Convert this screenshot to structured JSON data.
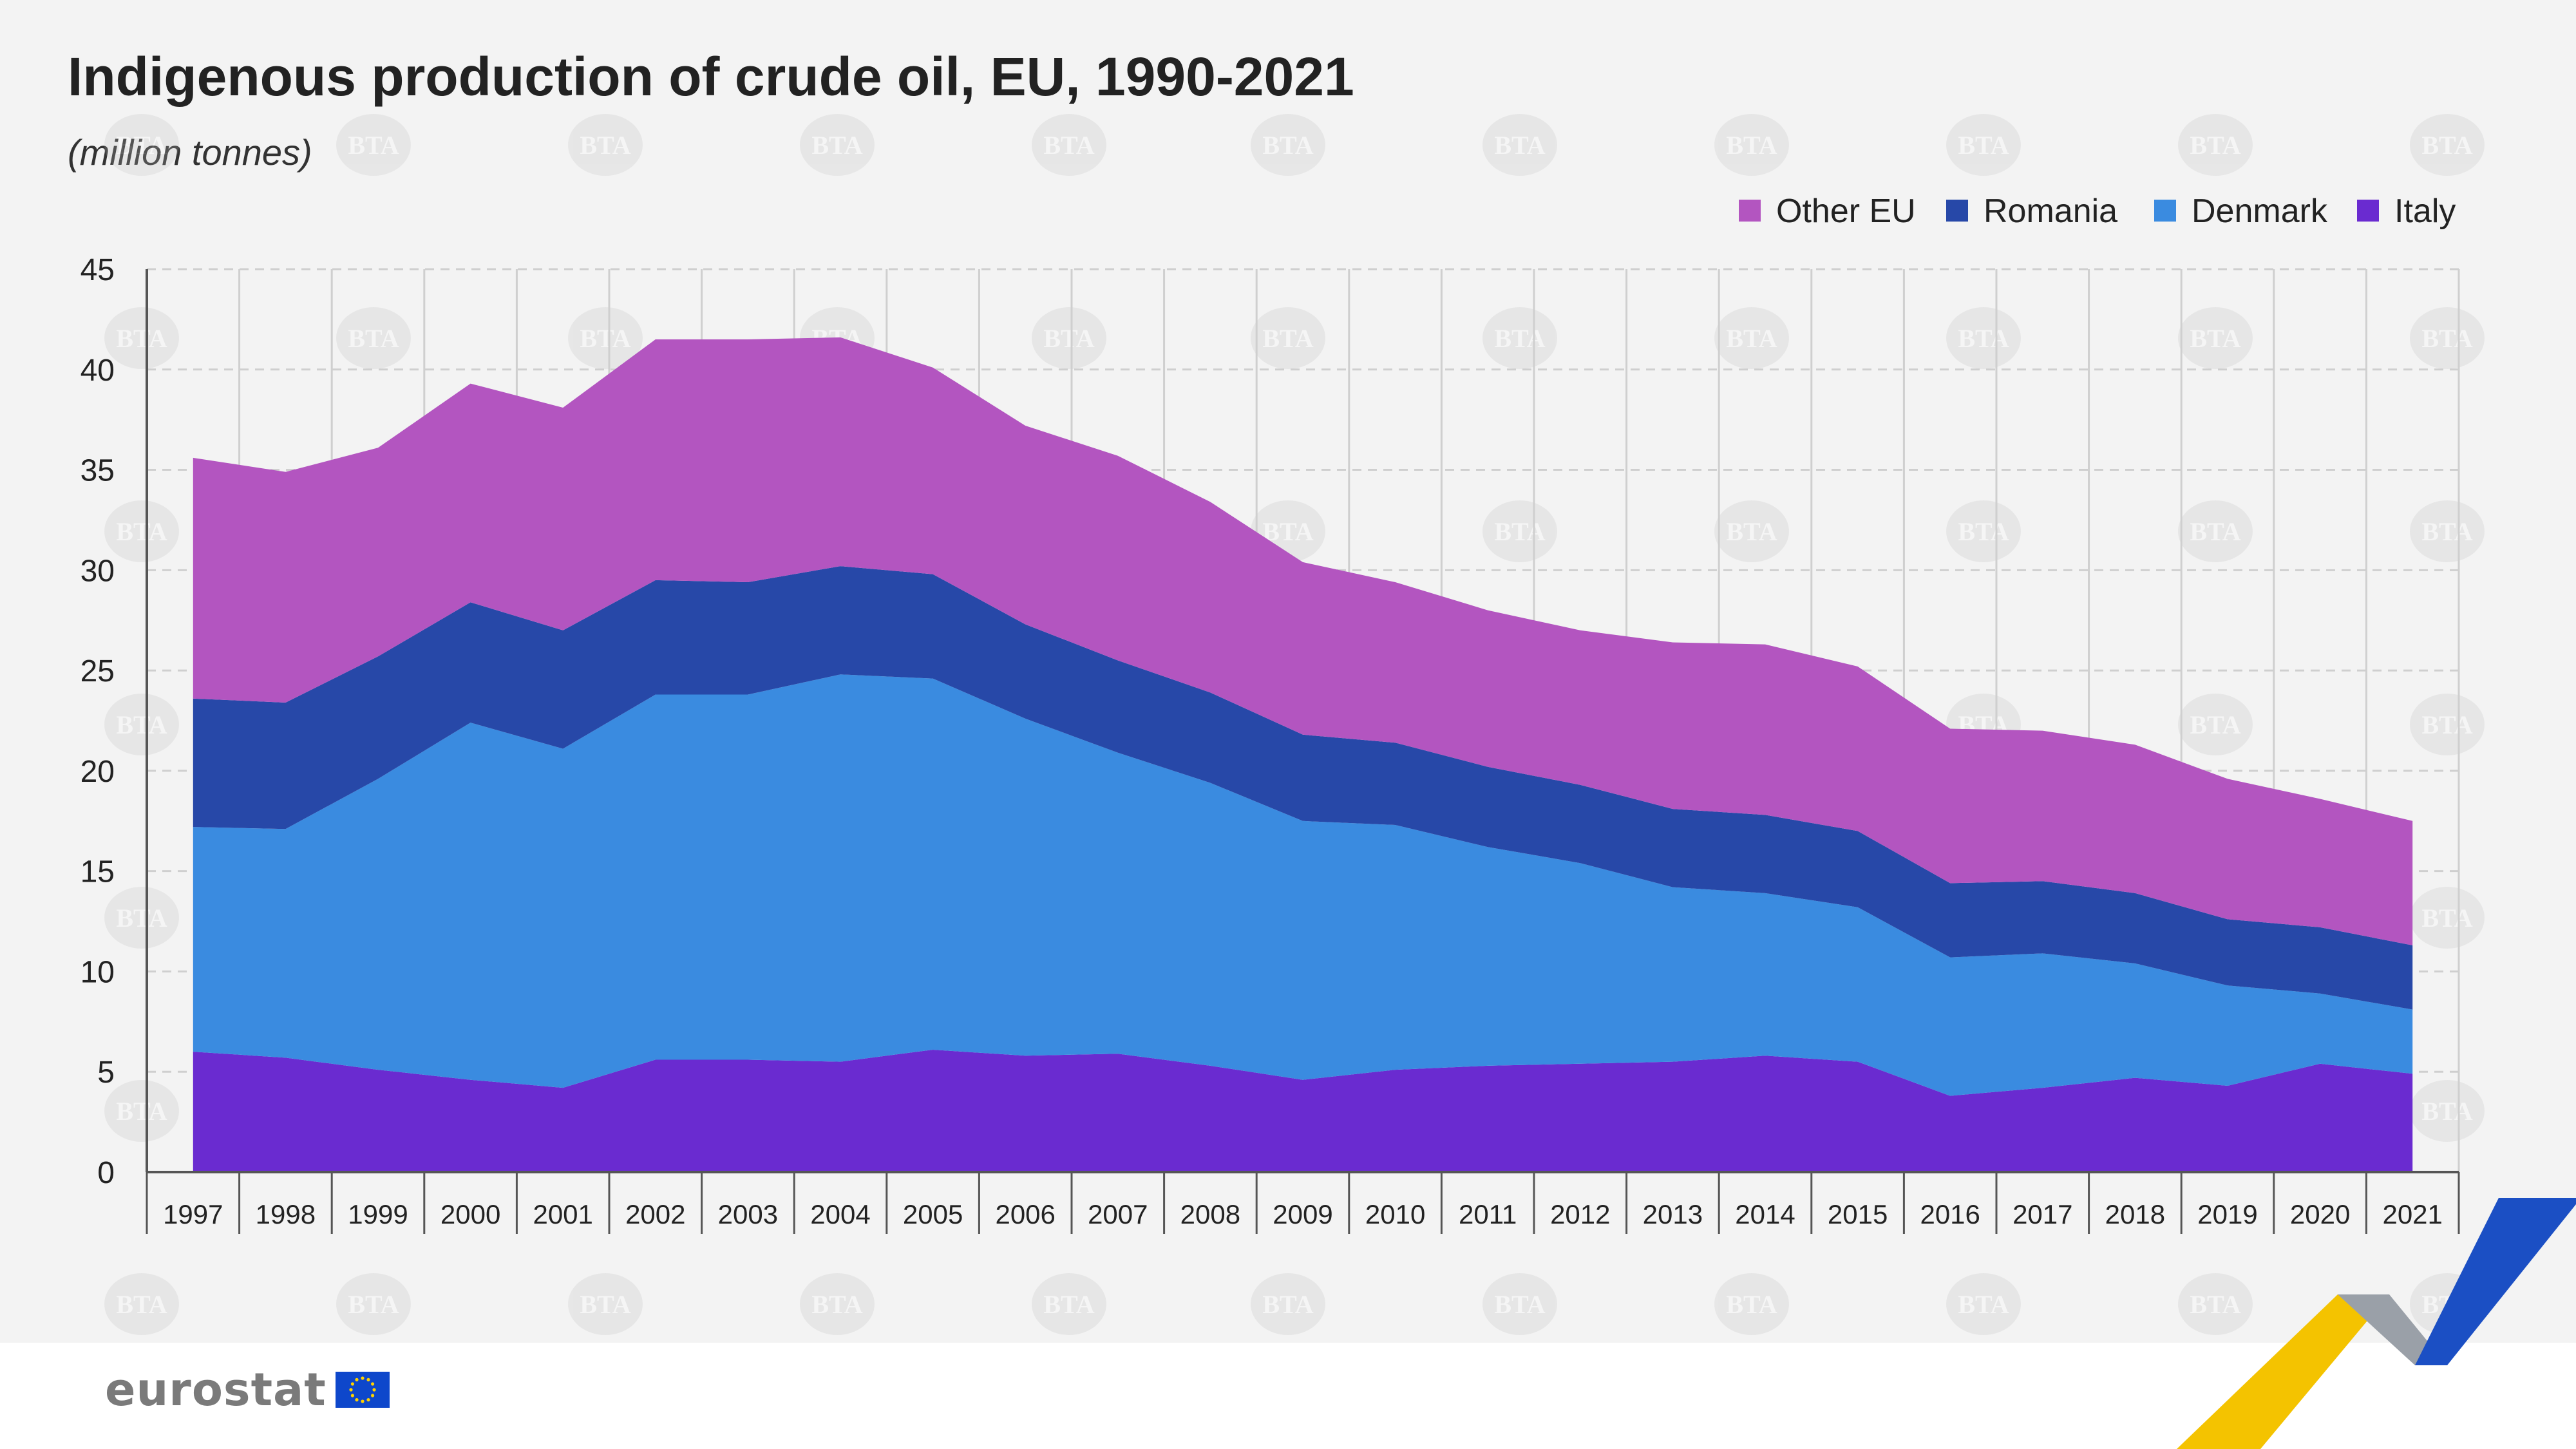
{
  "chart_data": {
    "type": "area",
    "stacked": true,
    "title": "Indigenous production of crude oil, EU, 1990-2021",
    "subtitle": "(million tonnes)",
    "xlabel": "",
    "ylabel": "",
    "ylim": [
      0,
      45
    ],
    "yticks": [
      0,
      5,
      10,
      15,
      20,
      25,
      30,
      35,
      40,
      45
    ],
    "grid": true,
    "legend_position": "top-right",
    "x": [
      "1997",
      "1998",
      "1999",
      "2000",
      "2001",
      "2002",
      "2003",
      "2004",
      "2005",
      "2006",
      "2007",
      "2008",
      "2009",
      "2010",
      "2011",
      "2012",
      "2013",
      "2014",
      "2015",
      "2016",
      "2017",
      "2018",
      "2019",
      "2020",
      "2021"
    ],
    "series": [
      {
        "name": "Italy",
        "color": "#6a2bd0",
        "values": [
          6.0,
          5.7,
          5.1,
          4.6,
          4.2,
          5.6,
          5.6,
          5.5,
          6.1,
          5.8,
          5.9,
          5.3,
          4.6,
          5.1,
          5.3,
          5.4,
          5.5,
          5.8,
          5.5,
          3.8,
          4.2,
          4.7,
          4.3,
          5.4,
          4.9
        ]
      },
      {
        "name": "Denmark",
        "color": "#3a8be0",
        "values": [
          11.2,
          11.4,
          14.5,
          17.8,
          16.9,
          18.2,
          18.2,
          19.3,
          18.5,
          16.8,
          15.0,
          14.1,
          12.9,
          12.2,
          10.9,
          10.0,
          8.7,
          8.1,
          7.7,
          6.9,
          6.7,
          5.7,
          5.0,
          3.5,
          3.2
        ]
      },
      {
        "name": "Romania",
        "color": "#2748a8",
        "values": [
          6.4,
          6.3,
          6.1,
          6.0,
          5.9,
          5.7,
          5.6,
          5.4,
          5.2,
          4.7,
          4.6,
          4.5,
          4.3,
          4.1,
          4.0,
          3.9,
          3.9,
          3.9,
          3.8,
          3.7,
          3.6,
          3.5,
          3.3,
          3.3,
          3.2
        ]
      },
      {
        "name": "Other EU",
        "color": "#b355c0",
        "values": [
          12.0,
          11.5,
          10.4,
          10.9,
          11.1,
          12.0,
          12.1,
          11.4,
          10.3,
          9.9,
          10.2,
          9.5,
          8.6,
          8.0,
          7.8,
          7.7,
          8.3,
          8.5,
          8.2,
          7.7,
          7.5,
          7.4,
          7.0,
          6.4,
          6.2
        ]
      }
    ],
    "legend_order": [
      "Other EU",
      "Romania",
      "Denmark",
      "Italy"
    ],
    "watermark": "BTA"
  },
  "footer": {
    "logo_text": "eurostat",
    "flag_icon": "eu-flag-icon"
  },
  "colors": {
    "background": "#f3f3f3",
    "grid": "#cfcfcf",
    "axis": "#555555",
    "text": "#222222",
    "deco_blue": "#1b4fc4",
    "deco_yellow": "#f4c300",
    "deco_grey": "#9aa0a8"
  }
}
